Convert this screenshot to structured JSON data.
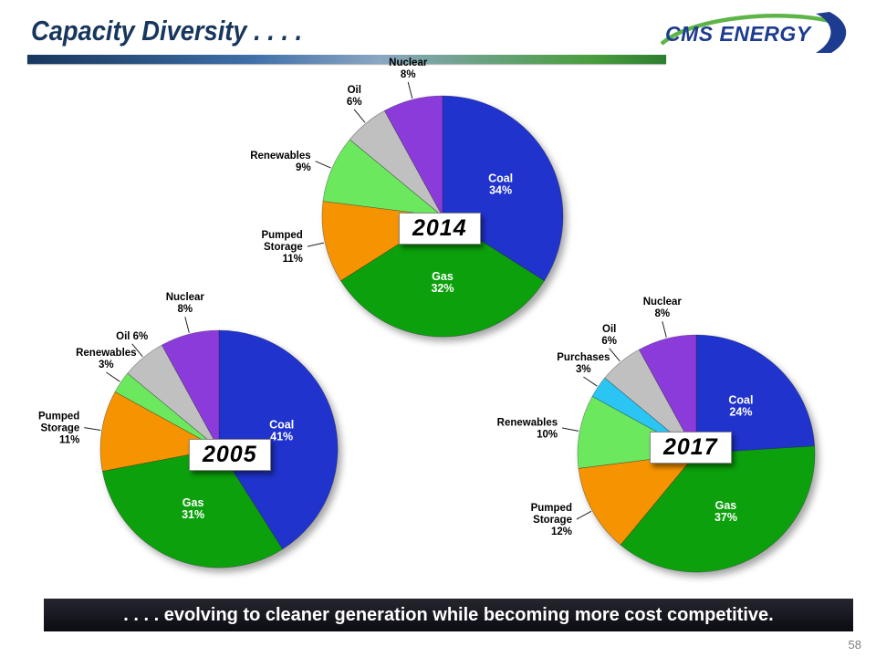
{
  "slide": {
    "title": "Capacity Diversity . . . .",
    "logo_text": "CMS ENERGY",
    "footer": ". . . . evolving to cleaner generation while becoming more cost competitive.",
    "page_number": "58"
  },
  "colors": {
    "coal": "#2033CC",
    "gas": "#0CA10C",
    "pumped_storage": "#F59300",
    "renewables": "#6CE85E",
    "purchases": "#2BC5F4",
    "oil": "#C0C0C0",
    "nuclear": "#8C3BDB",
    "title_text": "#17365D",
    "footer_bg": "#15151D"
  },
  "chart_data": [
    {
      "type": "pie",
      "year": "2014",
      "slices": [
        {
          "name": "Coal",
          "value": 34,
          "color_key": "coal",
          "placement": "inside",
          "lines": [
            "Coal",
            "34%"
          ]
        },
        {
          "name": "Gas",
          "value": 32,
          "color_key": "gas",
          "placement": "inside",
          "lines": [
            "Gas",
            "32%"
          ]
        },
        {
          "name": "Pumped Storage",
          "value": 11,
          "color_key": "pumped_storage",
          "placement": "outside",
          "lines": [
            "Pumped",
            "Storage",
            "11%"
          ]
        },
        {
          "name": "Renewables",
          "value": 9,
          "color_key": "renewables",
          "placement": "outside",
          "lines": [
            "Renewables",
            "9%"
          ]
        },
        {
          "name": "Oil",
          "value": 6,
          "color_key": "oil",
          "placement": "outside",
          "lines": [
            "Oil",
            "6%"
          ]
        },
        {
          "name": "Nuclear",
          "value": 8,
          "color_key": "nuclear",
          "placement": "outside",
          "lines": [
            "Nuclear",
            "8%"
          ]
        }
      ]
    },
    {
      "type": "pie",
      "year": "2005",
      "slices": [
        {
          "name": "Coal",
          "value": 41,
          "color_key": "coal",
          "placement": "inside",
          "lines": [
            "Coal",
            "41%"
          ]
        },
        {
          "name": "Gas",
          "value": 31,
          "color_key": "gas",
          "placement": "inside",
          "lines": [
            "Gas",
            "31%"
          ]
        },
        {
          "name": "Pumped Storage",
          "value": 11,
          "color_key": "pumped_storage",
          "placement": "outside",
          "lines": [
            "Pumped",
            "Storage",
            "11%"
          ]
        },
        {
          "name": "Renewables",
          "value": 3,
          "color_key": "renewables",
          "placement": "outside",
          "lines": [
            "Renewables",
            "3%"
          ]
        },
        {
          "name": "Oil",
          "value": 6,
          "color_key": "oil",
          "placement": "outside",
          "lines": [
            "Oil 6%"
          ]
        },
        {
          "name": "Nuclear",
          "value": 8,
          "color_key": "nuclear",
          "placement": "outside",
          "lines": [
            "Nuclear",
            "8%"
          ]
        }
      ]
    },
    {
      "type": "pie",
      "year": "2017",
      "slices": [
        {
          "name": "Coal",
          "value": 24,
          "color_key": "coal",
          "placement": "inside",
          "lines": [
            "Coal",
            "24%"
          ]
        },
        {
          "name": "Gas",
          "value": 37,
          "color_key": "gas",
          "placement": "inside",
          "lines": [
            "Gas",
            "37%"
          ]
        },
        {
          "name": "Pumped Storage",
          "value": 12,
          "color_key": "pumped_storage",
          "placement": "outside",
          "lines": [
            "Pumped",
            "Storage",
            "12%"
          ]
        },
        {
          "name": "Renewables",
          "value": 10,
          "color_key": "renewables",
          "placement": "outside",
          "lines": [
            "Renewables",
            "10%"
          ]
        },
        {
          "name": "Purchases",
          "value": 3,
          "color_key": "purchases",
          "placement": "outside",
          "lines": [
            "Purchases",
            "3%"
          ]
        },
        {
          "name": "Oil",
          "value": 6,
          "color_key": "oil",
          "placement": "outside",
          "lines": [
            "Oil",
            "6%"
          ]
        },
        {
          "name": "Nuclear",
          "value": 8,
          "color_key": "nuclear",
          "placement": "outside",
          "lines": [
            "Nuclear",
            "8%"
          ]
        }
      ]
    }
  ]
}
